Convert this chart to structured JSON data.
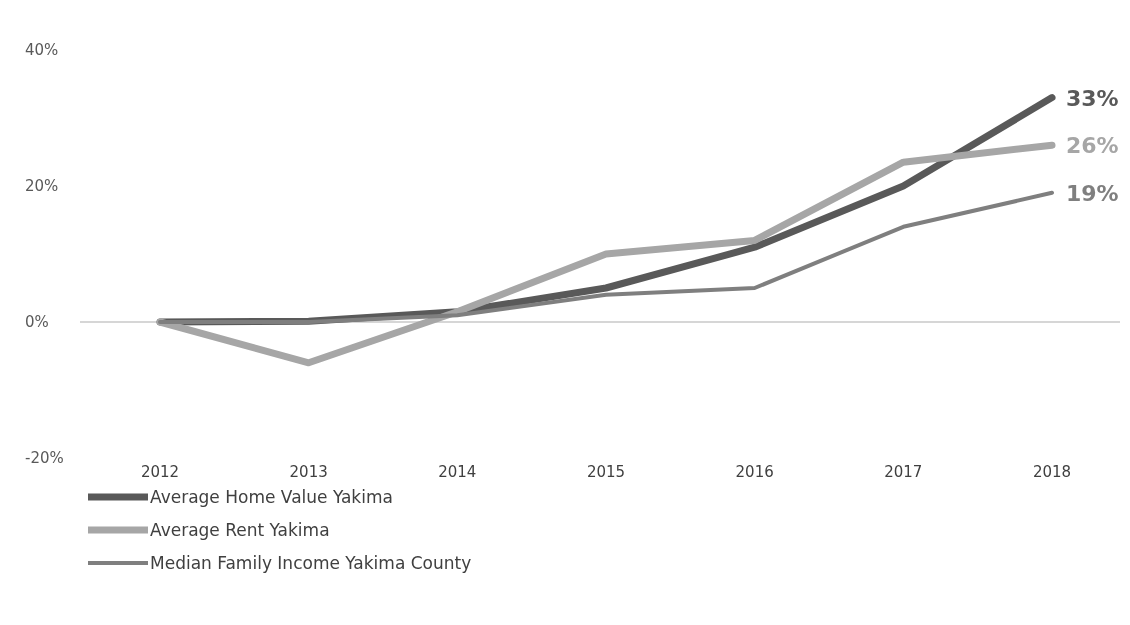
{
  "chart_data": {
    "type": "line",
    "categories": [
      "2012",
      "2013",
      "2014",
      "2015",
      "2016",
      "2017",
      "2018"
    ],
    "series": [
      {
        "name": "Average Home Value Yakima",
        "color": "#595959",
        "values": [
          0,
          0.1,
          1.5,
          5,
          11,
          20,
          33
        ],
        "value_labels": [
          null,
          null,
          null,
          null,
          null,
          null,
          "33%"
        ]
      },
      {
        "name": "Average Rent Yakima",
        "color": "#a6a6a6",
        "values": [
          0,
          -6,
          1.5,
          10,
          12,
          23.5,
          26
        ],
        "value_labels": [
          null,
          null,
          null,
          null,
          null,
          null,
          "26%"
        ]
      },
      {
        "name": "Median Family Income Yakima County",
        "color": "#7f7f7f",
        "values": [
          0,
          0,
          1,
          4,
          5,
          14,
          19
        ],
        "value_labels": [
          null,
          null,
          null,
          null,
          null,
          null,
          "19%"
        ]
      }
    ],
    "ylim": [
      -20,
      40
    ],
    "yticks": [
      {
        "value": -20,
        "label": "-20%"
      },
      {
        "value": 0,
        "label": "0%"
      },
      {
        "value": 20,
        "label": "20%"
      },
      {
        "value": 40,
        "label": "40%"
      }
    ],
    "ref_lines": [
      {
        "axis": "y",
        "value": 0,
        "color": "#c8c8c8"
      }
    ],
    "legend": "bottom left",
    "marker": "none",
    "line_style": "solid"
  }
}
